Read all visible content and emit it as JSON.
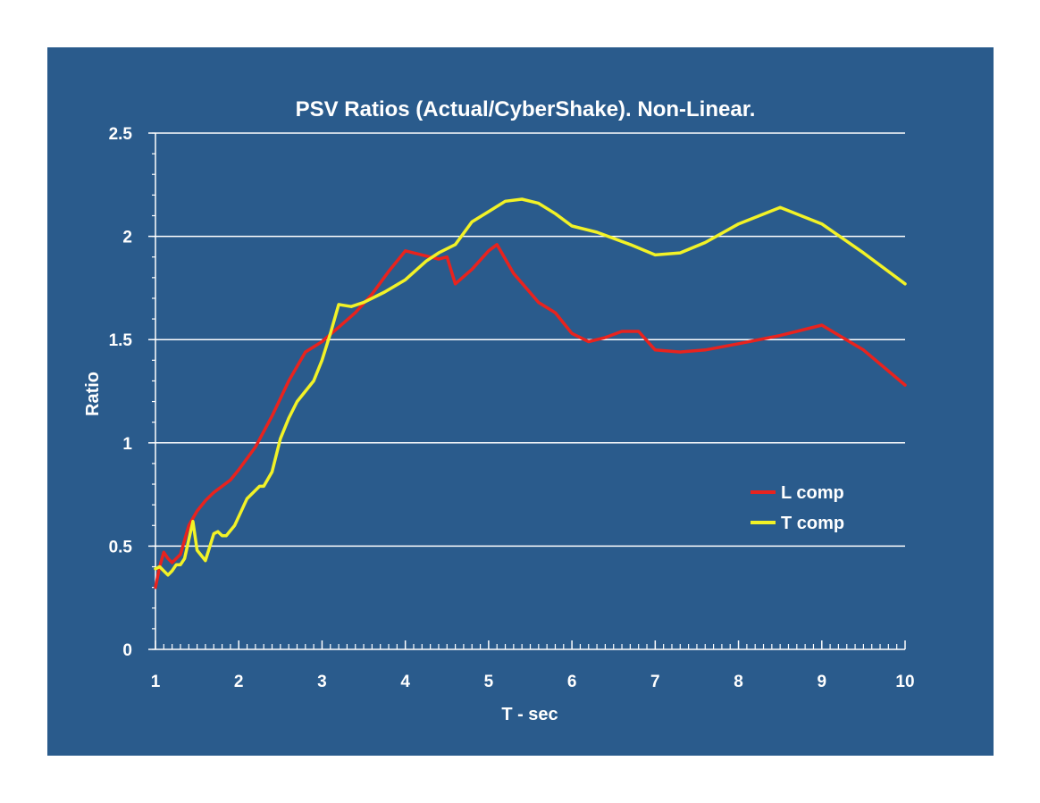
{
  "chart_data": {
    "type": "line",
    "title": "PSV Ratios (Actual/CyberShake). Non-Linear.",
    "xlabel": "T - sec",
    "ylabel": "Ratio",
    "xlim": [
      1,
      10
    ],
    "ylim": [
      0,
      2.5
    ],
    "x_ticks": [
      "1",
      "2",
      "3",
      "4",
      "5",
      "6",
      "7",
      "8",
      "9",
      "10"
    ],
    "y_ticks": [
      "0",
      "0.5",
      "1",
      "1.5",
      "2",
      "2.5"
    ],
    "grid": "horizontal",
    "legend_position": "right-center",
    "background_color": "#2a5b8c",
    "series": [
      {
        "name": "L comp",
        "color": "#e8231e",
        "points": [
          [
            1.0,
            0.3
          ],
          [
            1.05,
            0.4
          ],
          [
            1.1,
            0.47
          ],
          [
            1.15,
            0.44
          ],
          [
            1.2,
            0.42
          ],
          [
            1.3,
            0.46
          ],
          [
            1.4,
            0.6
          ],
          [
            1.5,
            0.67
          ],
          [
            1.6,
            0.72
          ],
          [
            1.7,
            0.76
          ],
          [
            1.8,
            0.79
          ],
          [
            1.9,
            0.82
          ],
          [
            2.0,
            0.87
          ],
          [
            2.2,
            0.98
          ],
          [
            2.4,
            1.13
          ],
          [
            2.6,
            1.3
          ],
          [
            2.8,
            1.44
          ],
          [
            3.0,
            1.49
          ],
          [
            3.2,
            1.56
          ],
          [
            3.4,
            1.63
          ],
          [
            3.6,
            1.72
          ],
          [
            3.8,
            1.83
          ],
          [
            4.0,
            1.93
          ],
          [
            4.2,
            1.91
          ],
          [
            4.4,
            1.89
          ],
          [
            4.5,
            1.9
          ],
          [
            4.6,
            1.77
          ],
          [
            4.8,
            1.84
          ],
          [
            5.0,
            1.93
          ],
          [
            5.1,
            1.96
          ],
          [
            5.3,
            1.82
          ],
          [
            5.6,
            1.68
          ],
          [
            5.8,
            1.63
          ],
          [
            6.0,
            1.53
          ],
          [
            6.2,
            1.49
          ],
          [
            6.4,
            1.51
          ],
          [
            6.6,
            1.54
          ],
          [
            6.8,
            1.54
          ],
          [
            7.0,
            1.45
          ],
          [
            7.3,
            1.44
          ],
          [
            7.6,
            1.45
          ],
          [
            8.0,
            1.48
          ],
          [
            8.5,
            1.52
          ],
          [
            9.0,
            1.57
          ],
          [
            9.5,
            1.45
          ],
          [
            10.0,
            1.28
          ]
        ]
      },
      {
        "name": "T comp",
        "color": "#f2f227",
        "points": [
          [
            1.0,
            0.39
          ],
          [
            1.05,
            0.4
          ],
          [
            1.1,
            0.38
          ],
          [
            1.15,
            0.36
          ],
          [
            1.2,
            0.38
          ],
          [
            1.25,
            0.41
          ],
          [
            1.3,
            0.41
          ],
          [
            1.35,
            0.44
          ],
          [
            1.45,
            0.62
          ],
          [
            1.5,
            0.48
          ],
          [
            1.6,
            0.43
          ],
          [
            1.7,
            0.56
          ],
          [
            1.75,
            0.57
          ],
          [
            1.8,
            0.55
          ],
          [
            1.85,
            0.55
          ],
          [
            1.95,
            0.6
          ],
          [
            2.1,
            0.73
          ],
          [
            2.25,
            0.79
          ],
          [
            2.3,
            0.79
          ],
          [
            2.4,
            0.86
          ],
          [
            2.5,
            1.02
          ],
          [
            2.6,
            1.12
          ],
          [
            2.7,
            1.2
          ],
          [
            2.9,
            1.3
          ],
          [
            3.0,
            1.4
          ],
          [
            3.1,
            1.53
          ],
          [
            3.2,
            1.67
          ],
          [
            3.35,
            1.66
          ],
          [
            3.5,
            1.68
          ],
          [
            3.75,
            1.73
          ],
          [
            4.0,
            1.79
          ],
          [
            4.25,
            1.88
          ],
          [
            4.4,
            1.92
          ],
          [
            4.6,
            1.96
          ],
          [
            4.8,
            2.07
          ],
          [
            5.0,
            2.12
          ],
          [
            5.2,
            2.17
          ],
          [
            5.4,
            2.18
          ],
          [
            5.6,
            2.16
          ],
          [
            5.8,
            2.11
          ],
          [
            6.0,
            2.05
          ],
          [
            6.3,
            2.02
          ],
          [
            6.7,
            1.96
          ],
          [
            7.0,
            1.91
          ],
          [
            7.3,
            1.92
          ],
          [
            7.6,
            1.97
          ],
          [
            8.0,
            2.06
          ],
          [
            8.5,
            2.14
          ],
          [
            9.0,
            2.06
          ],
          [
            9.5,
            1.92
          ],
          [
            10.0,
            1.77
          ]
        ]
      }
    ]
  }
}
